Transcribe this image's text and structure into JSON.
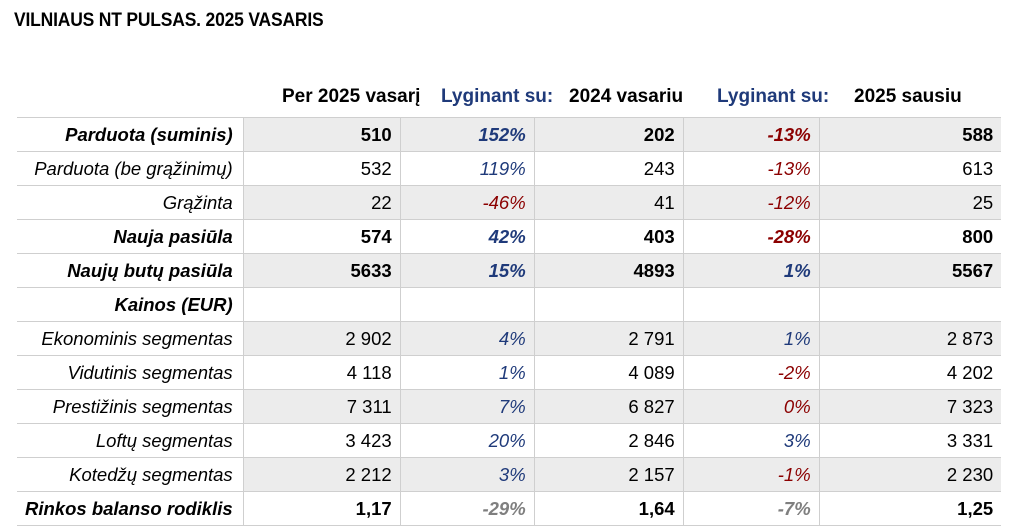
{
  "title": "VILNIAUS NT PULSAS. 2025 VASARIS",
  "headers": {
    "col1": "Per 2025 vasarį",
    "cmp1": "Lyginant su:",
    "col2": "2024 vasariu",
    "cmp2": "Lyginant su:",
    "col3": "2025 sausiu"
  },
  "colors": {
    "positive": "#1f3a7a",
    "negative": "#8b0000",
    "neutral": "#7f7f7f",
    "shade": "#ececec"
  },
  "rows": [
    {
      "label": "Parduota (suminis)",
      "bold": true,
      "shade": true,
      "v1": "510",
      "p1": "152%",
      "c1": "pos",
      "v2": "202",
      "p2": "-13%",
      "c2": "neg",
      "v3": "588"
    },
    {
      "label": "Parduota (be grąžinimų)",
      "bold": false,
      "shade": false,
      "v1": "532",
      "p1": "119%",
      "c1": "pos",
      "v2": "243",
      "p2": "-13%",
      "c2": "neg",
      "v3": "613"
    },
    {
      "label": "Grąžinta",
      "bold": false,
      "shade": true,
      "v1": "22",
      "p1": "-46%",
      "c1": "neg",
      "v2": "41",
      "p2": "-12%",
      "c2": "neg",
      "v3": "25"
    },
    {
      "label": "Nauja pasiūla",
      "bold": true,
      "shade": false,
      "v1": "574",
      "p1": "42%",
      "c1": "pos",
      "v2": "403",
      "p2": "-28%",
      "c2": "neg",
      "v3": "800"
    },
    {
      "label": "Naujų butų pasiūla",
      "bold": true,
      "shade": true,
      "v1": "5633",
      "p1": "15%",
      "c1": "pos",
      "v2": "4893",
      "p2": "1%",
      "c2": "pos",
      "v3": "5567"
    },
    {
      "label": "Kainos (EUR)",
      "bold": true,
      "shade": false,
      "v1": "",
      "p1": "",
      "c1": "pos",
      "v2": "",
      "p2": "",
      "c2": "pos",
      "v3": ""
    },
    {
      "label": "Ekonominis segmentas",
      "bold": false,
      "shade": true,
      "v1": "2 902",
      "p1": "4%",
      "c1": "pos",
      "v2": "2 791",
      "p2": "1%",
      "c2": "pos",
      "v3": "2 873"
    },
    {
      "label": "Vidutinis segmentas",
      "bold": false,
      "shade": false,
      "v1": "4 118",
      "p1": "1%",
      "c1": "pos",
      "v2": "4 089",
      "p2": "-2%",
      "c2": "neg",
      "v3": "4 202"
    },
    {
      "label": "Prestižinis segmentas",
      "bold": false,
      "shade": true,
      "v1": "7 311",
      "p1": "7%",
      "c1": "pos",
      "v2": "6 827",
      "p2": "0%",
      "c2": "neg",
      "v3": "7 323"
    },
    {
      "label": "Loftų segmentas",
      "bold": false,
      "shade": false,
      "v1": "3 423",
      "p1": "20%",
      "c1": "pos",
      "v2": "2 846",
      "p2": "3%",
      "c2": "pos",
      "v3": "3 331"
    },
    {
      "label": "Kotedžų segmentas",
      "bold": false,
      "shade": true,
      "v1": "2 212",
      "p1": "3%",
      "c1": "pos",
      "v2": "2 157",
      "p2": "-1%",
      "c2": "neg",
      "v3": "2 230"
    },
    {
      "label": "Rinkos balanso rodiklis",
      "bold": true,
      "shade": false,
      "v1": "1,17",
      "p1": "-29%",
      "c1": "neu",
      "v2": "1,64",
      "p2": "-7%",
      "c2": "neu",
      "v3": "1,25"
    }
  ]
}
